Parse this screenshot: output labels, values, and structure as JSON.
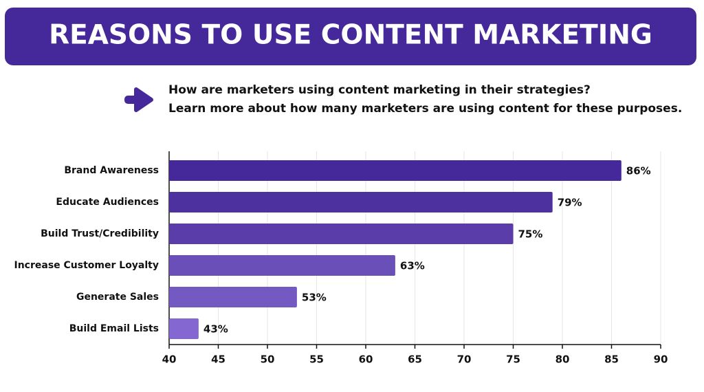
{
  "chart_data": {
    "type": "barh",
    "title": "REASONS TO USE CONTENT MARKETING",
    "subtitle": [
      "How are marketers using content marketing in their strategies?",
      "Learn more about how many marketers are using content for these purposes."
    ],
    "categories": [
      "Brand Awareness",
      "Educate Audiences",
      "Build Trust/Credibility",
      "Increase Customer Loyalty",
      "Generate Sales",
      "Build Email Lists"
    ],
    "values": [
      86,
      79,
      75,
      63,
      53,
      43
    ],
    "value_labels": [
      "86%",
      "79%",
      "75%",
      "63%",
      "53%",
      "43%"
    ],
    "colors": [
      "#45289a",
      "#4d319f",
      "#5a3da8",
      "#6a4fb8",
      "#7559c3",
      "#8567d2"
    ],
    "xlim": [
      40,
      90
    ],
    "xticks": [
      40,
      45,
      50,
      55,
      60,
      65,
      70,
      75,
      80,
      85,
      90
    ],
    "grid": true
  }
}
